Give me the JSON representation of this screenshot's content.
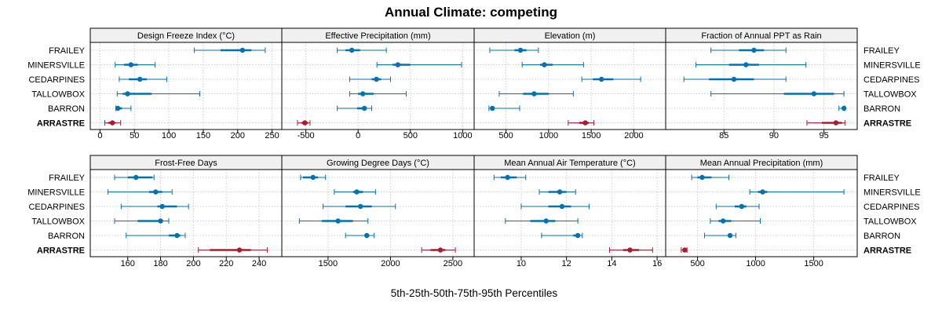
{
  "chart_data": {
    "type": "interval",
    "title": "Annual Climate: competing",
    "xlabel": "5th-25th-50th-75th-95th Percentiles",
    "sites": [
      "FRAILEY",
      "MINERSVILLE",
      "CEDARPINES",
      "TALLOWBOX",
      "BARRON",
      "ARRASTRE"
    ],
    "reference_site": "ARRASTRE",
    "colors": {
      "site": "#0072b2",
      "reference": "#b2182b"
    },
    "rows": [
      {
        "xlim": [
          -5,
          255
        ],
        "panels": [
          {
            "name": "Design Freeze Index (°C)",
            "ticks": [
              0,
              50,
              100,
              150,
              200,
              250
            ],
            "data": [
              [
                137,
                175,
                207,
                220,
                240
              ],
              [
                22,
                35,
                45,
                55,
                80
              ],
              [
                28,
                42,
                58,
                68,
                97
              ],
              [
                25,
                33,
                40,
                75,
                145
              ],
              [
                23,
                24,
                26,
                32,
                45
              ],
              [
                7,
                12,
                18,
                22,
                30
              ]
            ]
          },
          {
            "name": "Effective Precipitation (mm)",
            "ticks": [
              -500,
              0,
              500,
              1000
            ],
            "ticks_pos": [
              -500,
              0,
              500,
              1000
            ],
            "xlim": [
              -670,
              1050
            ],
            "data": [
              [
                -200,
                -120,
                -60,
                20,
                270
              ],
              [
                180,
                330,
                380,
                500,
                990
              ],
              [
                -80,
                130,
                175,
                220,
                310
              ],
              [
                -80,
                0,
                45,
                150,
                460
              ],
              [
                -200,
                -10,
                60,
                80,
                130
              ],
              [
                -580,
                -540,
                -510,
                -480,
                -460
              ]
            ]
          },
          {
            "name": "Elevation (m)",
            "ticks": [
              500,
              1000,
              1500,
              2000
            ],
            "xlim": [
              200,
              2300
            ],
            "data": [
              [
                310,
                600,
                670,
                740,
                880
              ],
              [
                690,
                900,
                950,
                1050,
                1410
              ],
              [
                1390,
                1520,
                1620,
                1760,
                2080
              ],
              [
                420,
                700,
                830,
                1000,
                1290
              ],
              [
                300,
                330,
                340,
                360,
                660
              ],
              [
                1230,
                1360,
                1430,
                1470,
                1530
              ]
            ]
          },
          {
            "name": "Fraction of Annual PPT as Rain",
            "ticks": [
              85,
              90,
              95
            ],
            "xlim": [
              79.8,
              97.7
            ],
            "data": [
              [
                83.7,
                86.5,
                88,
                89,
                91.2
              ],
              [
                82.2,
                85.5,
                87.2,
                88.5,
                93.2
              ],
              [
                81,
                83.5,
                86,
                88,
                91.2
              ],
              [
                83.7,
                91,
                94,
                96,
                97
              ],
              [
                96.5,
                96.8,
                97,
                97,
                97.1
              ],
              [
                93.3,
                94.8,
                96.2,
                96.8,
                97.1
              ]
            ]
          }
        ]
      },
      {
        "panels": [
          {
            "name": "Frost-Free Days",
            "ticks": [
              160,
              180,
              200,
              220,
              240
            ],
            "xlim": [
              141,
              250
            ],
            "data": [
              [
                152,
                160,
                165,
                175,
                176
              ],
              [
                148,
                173,
                177,
                181,
                187
              ],
              [
                156,
                178,
                181,
                190,
                197
              ],
              [
                152,
                166,
                180,
                180,
                185
              ],
              [
                159,
                185,
                190,
                192,
                195
              ],
              [
                203,
                210,
                228,
                235,
                245
              ]
            ]
          },
          {
            "name": "Growing Degree Days (°C)",
            "ticks": [
              1500,
              2000,
              2500
            ],
            "xlim": [
              1180,
              2620
            ],
            "data": [
              [
                1280,
                1300,
                1380,
                1420,
                1480
              ],
              [
                1550,
                1700,
                1730,
                1780,
                1880
              ],
              [
                1460,
                1640,
                1760,
                1850,
                2040
              ],
              [
                1270,
                1450,
                1580,
                1700,
                1820
              ],
              [
                1640,
                1800,
                1810,
                1830,
                1870
              ],
              [
                2250,
                2320,
                2400,
                2440,
                2520
              ]
            ]
          },
          {
            "name": "Mean Annual Air Temperature (°C)",
            "ticks": [
              10,
              12,
              14,
              16
            ],
            "xlim": [
              8.2,
              16.1
            ],
            "data": [
              [
                8.8,
                9.1,
                9.4,
                9.8,
                10.2
              ],
              [
                10.8,
                11.2,
                11.7,
                12,
                12.4
              ],
              [
                10,
                11.2,
                11.8,
                12.2,
                13
              ],
              [
                9.3,
                10.4,
                11.1,
                11.5,
                12.5
              ],
              [
                10.9,
                12.3,
                12.5,
                12.6,
                12.7
              ],
              [
                13.9,
                14.5,
                14.8,
                15.2,
                15.8
              ]
            ]
          },
          {
            "name": "Mean Annual Precipitation (mm)",
            "ticks": [
              500,
              1000,
              1500
            ],
            "xlim": [
              280,
              1820
            ],
            "data": [
              [
                450,
                500,
                540,
                620,
                770
              ],
              [
                950,
                1020,
                1060,
                1100,
                1760
              ],
              [
                660,
                820,
                880,
                920,
                1030
              ],
              [
                610,
                680,
                720,
                790,
                1040
              ],
              [
                560,
                760,
                780,
                800,
                830
              ],
              [
                360,
                380,
                390,
                400,
                410
              ]
            ]
          }
        ]
      }
    ]
  }
}
